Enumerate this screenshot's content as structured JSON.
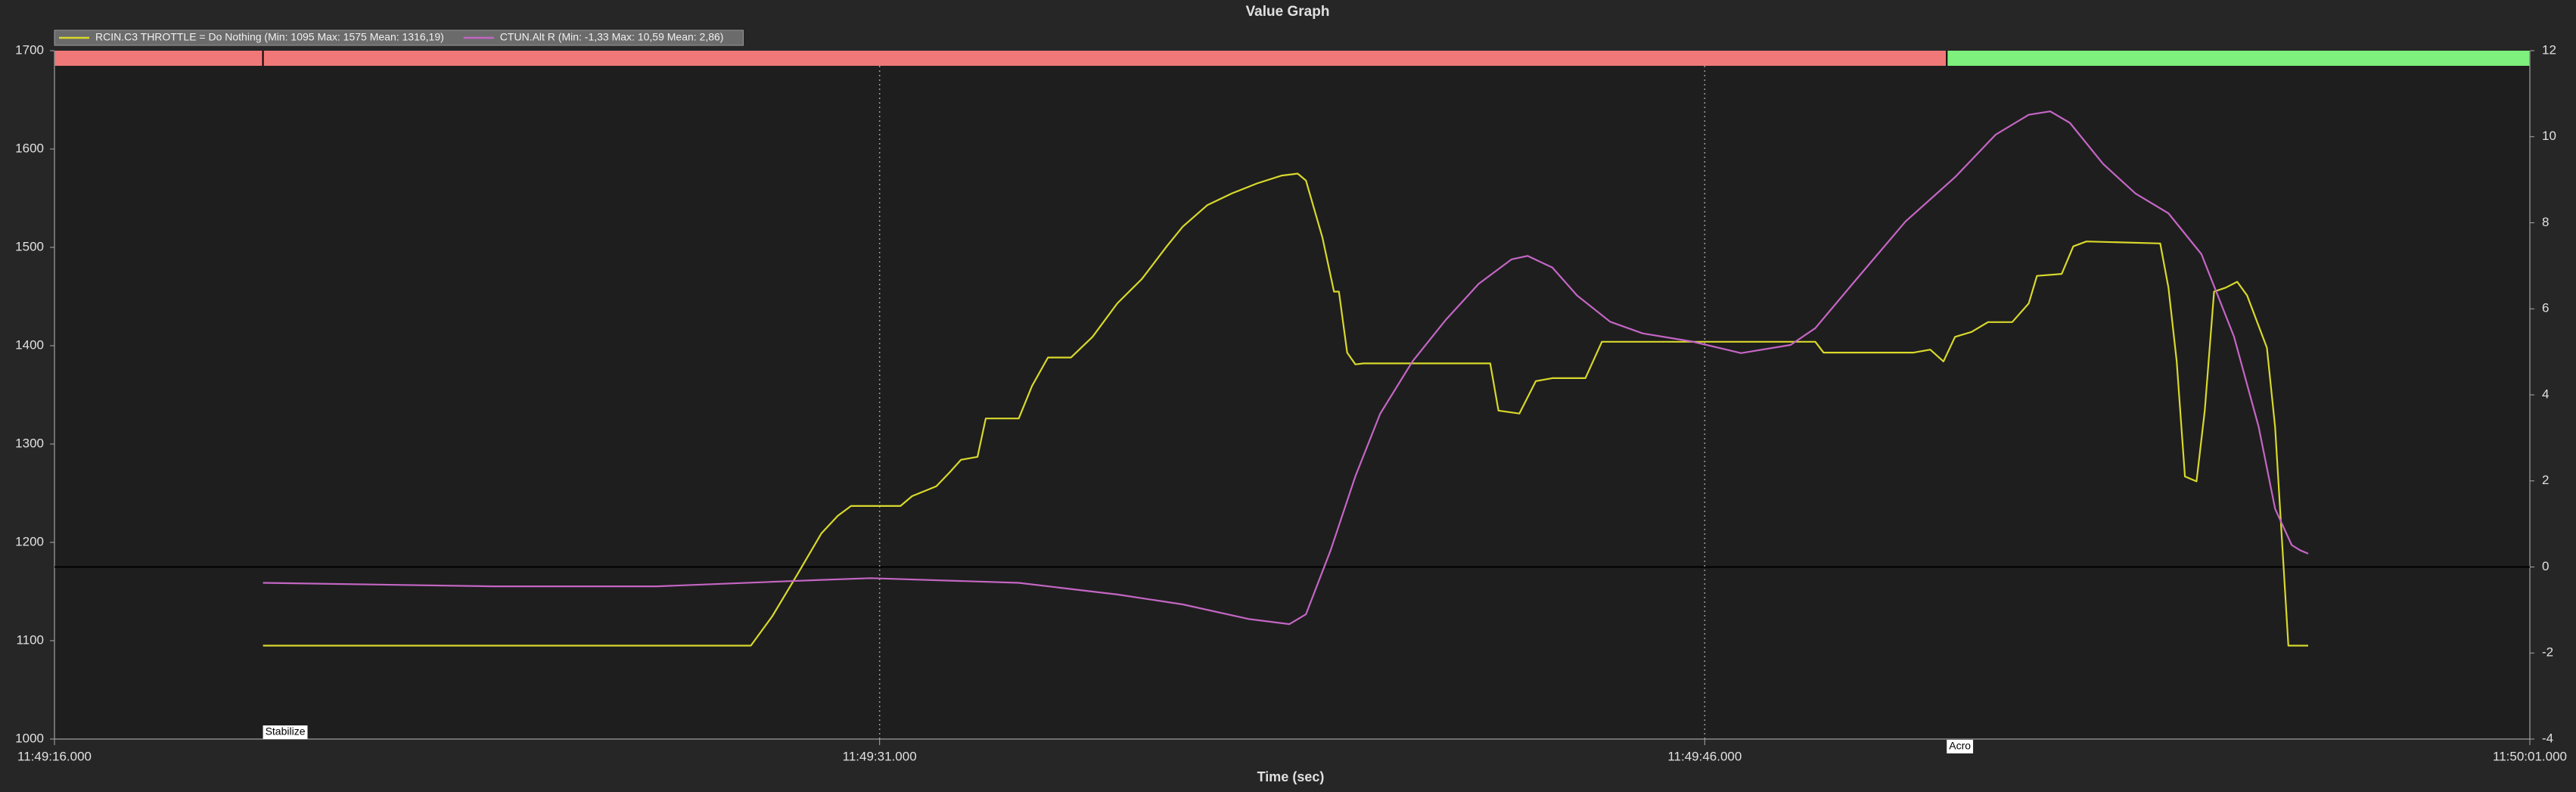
{
  "chart_data": {
    "type": "line",
    "title": "Value Graph",
    "x_label": "Time (sec)",
    "xlim": [
      16,
      61
    ],
    "xticks": [
      {
        "value": 16,
        "label": "11:49:16.000"
      },
      {
        "value": 31,
        "label": "11:49:31.000"
      },
      {
        "value": 46,
        "label": "11:49:46.000"
      },
      {
        "value": 61,
        "label": "11:50:01.000"
      }
    ],
    "ylim": [
      1000,
      1700
    ],
    "yticks": [
      1000,
      1100,
      1200,
      1300,
      1400,
      1500,
      1600,
      1700
    ],
    "y2lim": [
      -4,
      12
    ],
    "y2ticks": [
      -4,
      -2,
      0,
      2,
      4,
      6,
      8,
      10,
      12
    ],
    "grid": "x",
    "legend": "top-left",
    "modes": [
      {
        "label": "Stabilize",
        "x": 19.79,
        "color": "#f07878"
      },
      {
        "label": "Acro",
        "x": 50.4,
        "color": "#7df07d"
      }
    ],
    "series": [
      {
        "name": "RCIN.C3 THROTTLE = Do Nothing (Min: 1095 Max: 1575 Mean: 1316,19)",
        "color": "#d8d82c",
        "x": [
          19.79,
          28.66,
          29.05,
          29.5,
          29.94,
          30.24,
          30.48,
          31.38,
          31.59,
          32.03,
          32.27,
          32.48,
          32.78,
          32.93,
          33.53,
          33.77,
          34.06,
          34.48,
          34.87,
          35.32,
          35.77,
          36.22,
          36.51,
          36.96,
          37.41,
          37.86,
          38.31,
          38.6,
          38.75,
          39.05,
          39.26,
          39.35,
          39.5,
          39.65,
          39.8,
          42.1,
          42.25,
          42.63,
          42.93,
          43.23,
          43.83,
          44.13,
          48.01,
          48.16,
          49.8,
          50.1,
          50.34,
          50.55,
          50.85,
          51.15,
          51.59,
          51.89,
          52.04,
          52.49,
          52.7,
          52.94,
          54.28,
          54.43,
          54.58,
          54.73,
          54.94,
          55.09,
          55.26,
          55.47,
          55.68,
          55.86,
          56.22,
          56.37,
          56.61,
          56.97
        ],
        "values": [
          1095,
          1095,
          1125,
          1167,
          1209,
          1227,
          1237,
          1237,
          1247,
          1257,
          1271,
          1284,
          1287,
          1326,
          1326,
          1359,
          1388,
          1388,
          1409,
          1443,
          1468,
          1501,
          1521,
          1543,
          1555,
          1565,
          1573,
          1575,
          1568,
          1510,
          1455,
          1455,
          1393,
          1381,
          1382,
          1382,
          1334,
          1331,
          1364,
          1367,
          1367,
          1404,
          1404,
          1393,
          1393,
          1396,
          1384,
          1409,
          1414,
          1424,
          1424,
          1443,
          1471,
          1473,
          1501,
          1506,
          1504,
          1459,
          1384,
          1267,
          1262,
          1334,
          1455,
          1459,
          1465,
          1451,
          1398,
          1317,
          1095,
          1095
        ]
      },
      {
        "name": "CTUN.Alt R (Min: -1,33 Max: 10,59 Mean: 2,86)",
        "color": "#c466c4",
        "axis": "y2",
        "x": [
          19.79,
          23.97,
          26.96,
          29.94,
          30.84,
          33.53,
          35.32,
          36.51,
          37.71,
          38.45,
          38.75,
          39.2,
          39.65,
          40.1,
          40.69,
          41.29,
          41.89,
          42.49,
          42.78,
          43.23,
          43.68,
          44.28,
          44.87,
          45.77,
          46.66,
          47.56,
          48.01,
          48.76,
          49.65,
          50.55,
          51.29,
          51.89,
          52.28,
          52.64,
          53.24,
          53.83,
          54.43,
          55.03,
          55.62,
          56.07,
          56.37,
          56.67,
          56.82,
          56.97
        ],
        "values": [
          -0.37,
          -0.45,
          -0.45,
          -0.3,
          -0.26,
          -0.37,
          -0.64,
          -0.87,
          -1.21,
          -1.33,
          -1.1,
          0.39,
          2.11,
          3.56,
          4.78,
          5.74,
          6.58,
          7.15,
          7.23,
          6.96,
          6.31,
          5.7,
          5.43,
          5.24,
          4.97,
          5.16,
          5.55,
          6.69,
          8.03,
          9.06,
          10.05,
          10.51,
          10.59,
          10.32,
          9.37,
          8.68,
          8.22,
          7.27,
          5.36,
          3.26,
          1.35,
          0.51,
          0.39,
          0.31
        ]
      }
    ]
  }
}
